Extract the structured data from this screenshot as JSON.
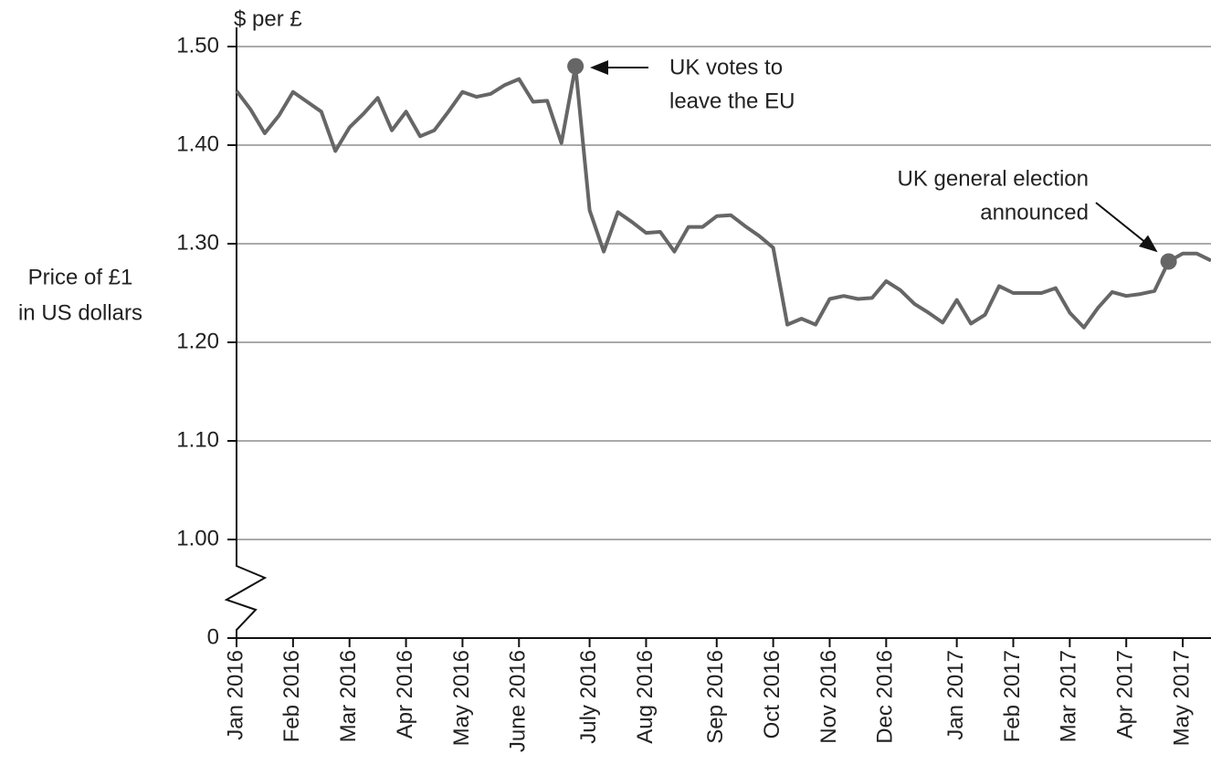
{
  "chart_data": {
    "type": "line",
    "unit_label": "$ per £",
    "ylabel": [
      "Price of £1",
      "in US dollars"
    ],
    "categories": [
      "Jan 2016",
      null,
      null,
      null,
      "Feb 2016",
      null,
      null,
      null,
      "Mar 2016",
      null,
      null,
      null,
      "Apr 2016",
      null,
      null,
      null,
      "May 2016",
      null,
      null,
      null,
      "June 2016",
      null,
      null,
      null,
      null,
      "July 2016",
      null,
      null,
      null,
      "Aug 2016",
      null,
      null,
      null,
      null,
      "Sep 2016",
      null,
      null,
      null,
      "Oct 2016",
      null,
      null,
      null,
      "Nov 2016",
      null,
      null,
      null,
      "Dec 2016",
      null,
      null,
      null,
      null,
      "Jan 2017",
      null,
      null,
      null,
      "Feb 2017",
      null,
      null,
      null,
      "Mar 2017",
      null,
      null,
      null,
      "Apr 2017",
      null,
      null,
      null,
      "May 2017",
      null,
      null
    ],
    "values": [
      1.455,
      1.436,
      1.412,
      1.43,
      1.454,
      1.444,
      1.434,
      1.394,
      1.418,
      1.432,
      1.448,
      1.415,
      1.434,
      1.409,
      1.415,
      1.434,
      1.454,
      1.449,
      1.452,
      1.461,
      1.467,
      1.444,
      1.445,
      1.402,
      1.48,
      1.334,
      1.292,
      1.332,
      1.322,
      1.311,
      1.312,
      1.292,
      1.317,
      1.317,
      1.328,
      1.329,
      1.318,
      1.308,
      1.296,
      1.218,
      1.224,
      1.218,
      1.244,
      1.247,
      1.244,
      1.245,
      1.262,
      1.253,
      1.239,
      1.23,
      1.22,
      1.243,
      1.219,
      1.228,
      1.257,
      1.25,
      1.25,
      1.25,
      1.255,
      1.23,
      1.215,
      1.235,
      1.251,
      1.247,
      1.249,
      1.252,
      1.282,
      1.29,
      1.29,
      1.283
    ],
    "color": "#666666",
    "ylim": [
      0,
      1.5
    ],
    "y_break": [
      0,
      1
    ],
    "yticks": [
      0,
      {
        "value": 1,
        "label": "1.00"
      },
      {
        "value": 1.1,
        "label": "1.10"
      },
      {
        "value": 1.2,
        "label": "1.20"
      },
      {
        "value": 1.3,
        "label": "1.30"
      },
      {
        "value": 1.4,
        "label": "1.40"
      },
      {
        "value": 1.5,
        "label": "1.50"
      }
    ],
    "grid": true,
    "annotations": [
      {
        "text": [
          "UK votes to",
          "leave the EU"
        ]
      },
      {
        "text": [
          "UK general election",
          "announced"
        ]
      }
    ]
  }
}
